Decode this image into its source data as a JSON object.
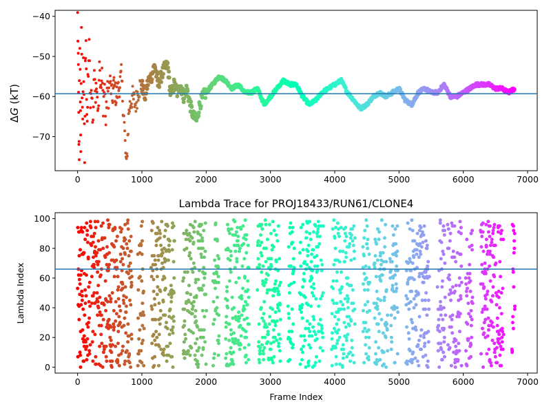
{
  "chart_data": [
    {
      "type": "scatter",
      "title": "",
      "ylabel_html": "ΔG (kT)",
      "ylabel": {
        "main": "Δ",
        "italic": "G",
        "rest": " (kT)"
      },
      "xlabel": "",
      "xlim": [
        -350,
        7150
      ],
      "ylim": [
        -78.5,
        -38.5
      ],
      "xticks": [
        0,
        1000,
        2000,
        3000,
        4000,
        5000,
        6000,
        7000
      ],
      "yticks": [
        -40,
        -50,
        -60,
        -70
      ],
      "hline": -59.3,
      "hline_color": "#1f77b4",
      "colormap": "rainbow (colored by frame index, red at start, violet at end)",
      "series_description": "Running free energy estimate, converging from about -75 to -40 in early frames toward about -59 by frame 6800",
      "points": [
        [
          0,
          -40
        ],
        [
          10,
          -50
        ],
        [
          15,
          -60
        ],
        [
          20,
          -70
        ],
        [
          25,
          -77
        ],
        [
          30,
          -39
        ],
        [
          40,
          -55
        ],
        [
          45,
          -64
        ],
        [
          50,
          -72
        ],
        [
          60,
          -45
        ],
        [
          70,
          -58
        ],
        [
          80,
          -67
        ],
        [
          90,
          -49
        ],
        [
          100,
          -62
        ],
        [
          110,
          -76
        ],
        [
          120,
          -53
        ],
        [
          130,
          -44
        ],
        [
          140,
          -60
        ],
        [
          150,
          -69
        ],
        [
          160,
          -56
        ],
        [
          180,
          -48
        ],
        [
          200,
          -63
        ],
        [
          220,
          -58
        ],
        [
          240,
          -67
        ],
        [
          260,
          -52
        ],
        [
          280,
          -61
        ],
        [
          300,
          -56
        ],
        [
          320,
          -64
        ],
        [
          340,
          -50
        ],
        [
          360,
          -59
        ],
        [
          380,
          -55
        ],
        [
          400,
          -62
        ],
        [
          420,
          -57
        ],
        [
          440,
          -67
        ],
        [
          460,
          -58
        ],
        [
          480,
          -60
        ],
        [
          500,
          -56
        ],
        [
          520,
          -58
        ],
        [
          540,
          -61
        ],
        [
          560,
          -57
        ],
        [
          600,
          -60
        ],
        [
          640,
          -58
        ],
        [
          680,
          -55
        ],
        [
          700,
          -60
        ],
        [
          720,
          -65
        ],
        [
          740,
          -72
        ],
        [
          760,
          -78
        ],
        [
          780,
          -70
        ],
        [
          800,
          -63
        ],
        [
          820,
          -62
        ],
        [
          850,
          -60
        ],
        [
          900,
          -62
        ],
        [
          950,
          -58
        ],
        [
          1000,
          -57
        ],
        [
          1050,
          -60
        ],
        [
          1100,
          -56
        ],
        [
          1150,
          -55
        ],
        [
          1200,
          -52
        ],
        [
          1250,
          -57
        ],
        [
          1300,
          -55
        ],
        [
          1350,
          -53
        ],
        [
          1400,
          -52
        ],
        [
          1450,
          -60
        ],
        [
          1500,
          -57
        ],
        [
          1550,
          -59
        ],
        [
          1600,
          -57
        ],
        [
          1650,
          -60
        ],
        [
          1700,
          -58
        ],
        [
          1750,
          -62
        ],
        [
          1800,
          -65
        ],
        [
          1850,
          -66
        ],
        [
          1900,
          -62
        ],
        [
          1950,
          -60
        ],
        [
          2000,
          -59
        ],
        [
          2100,
          -57
        ],
        [
          2200,
          -55
        ],
        [
          2300,
          -56
        ],
        [
          2400,
          -58
        ],
        [
          2500,
          -57
        ],
        [
          2600,
          -59
        ],
        [
          2700,
          -59
        ],
        [
          2800,
          -58
        ],
        [
          2900,
          -62
        ],
        [
          3000,
          -60
        ],
        [
          3100,
          -58
        ],
        [
          3200,
          -56
        ],
        [
          3300,
          -57
        ],
        [
          3400,
          -57
        ],
        [
          3500,
          -60
        ],
        [
          3600,
          -62
        ],
        [
          3700,
          -61
        ],
        [
          3800,
          -59
        ],
        [
          3900,
          -58
        ],
        [
          4000,
          -57
        ],
        [
          4100,
          -56
        ],
        [
          4200,
          -59
        ],
        [
          4300,
          -61
        ],
        [
          4400,
          -63
        ],
        [
          4500,
          -62
        ],
        [
          4600,
          -60
        ],
        [
          4700,
          -59
        ],
        [
          4800,
          -60
        ],
        [
          4900,
          -59
        ],
        [
          5000,
          -58
        ],
        [
          5100,
          -61
        ],
        [
          5200,
          -62
        ],
        [
          5300,
          -59
        ],
        [
          5400,
          -58
        ],
        [
          5500,
          -59
        ],
        [
          5600,
          -59
        ],
        [
          5700,
          -57
        ],
        [
          5800,
          -60
        ],
        [
          5900,
          -60
        ],
        [
          6000,
          -59
        ],
        [
          6100,
          -58
        ],
        [
          6200,
          -57
        ],
        [
          6300,
          -57
        ],
        [
          6400,
          -57
        ],
        [
          6500,
          -58
        ],
        [
          6600,
          -58
        ],
        [
          6700,
          -59
        ],
        [
          6800,
          -58
        ]
      ]
    },
    {
      "type": "scatter",
      "title": "Lambda Trace for PROJ18433/RUN61/CLONE4",
      "xlabel": "Frame Index",
      "ylabel": "Lambda Index",
      "xlim": [
        -350,
        7150
      ],
      "ylim": [
        -4,
        104
      ],
      "xticks": [
        0,
        1000,
        2000,
        3000,
        4000,
        5000,
        6000,
        7000
      ],
      "yticks": [
        0,
        20,
        40,
        60,
        80,
        100
      ],
      "hline": 66,
      "hline_color": "#1f77b4",
      "colormap": "rainbow (colored by frame index)",
      "series_description": "Lambda index (0–100) per frame, scattered in vertical bands across frames 0–6800"
    }
  ],
  "ui": {
    "ax1_title": "",
    "ax2_title": "Lambda Trace for PROJ18433/RUN61/CLONE4",
    "ax2_xlabel": "Frame Index",
    "ax2_ylabel": "Lambda Index"
  }
}
